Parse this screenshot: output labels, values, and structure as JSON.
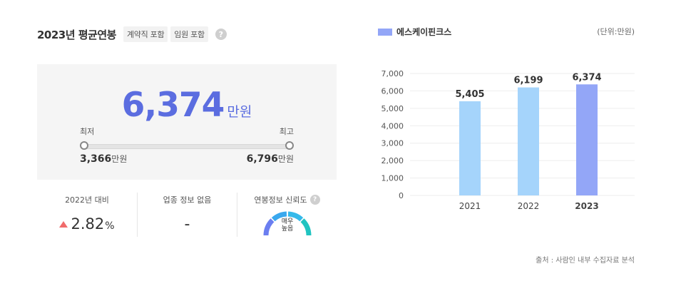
{
  "header": {
    "title": "2023년 평균연봉",
    "tag_contract": "계약직 포함",
    "tag_exec": "임원 포함",
    "help": "?"
  },
  "salary": {
    "average": "6,374",
    "unit": "만원",
    "min_label": "최저",
    "max_label": "최고",
    "min_value": "3,366",
    "max_value": "6,796",
    "range_unit": "만원"
  },
  "stats": {
    "yoy_label": "2022년 대비",
    "yoy_value": "2.82",
    "yoy_unit": "%",
    "industry_label": "업종 정보 없음",
    "industry_value": "-",
    "reliability_label": "연봉정보 신뢰도",
    "reliability_help": "?",
    "reliability_value_line1": "매우",
    "reliability_value_line2": "높음"
  },
  "legend": {
    "series_name": "에스케이핀크스",
    "unit_note": "(단위:만원)"
  },
  "colors": {
    "accent": "#5b6de0",
    "bar_past": "#a5d4fb",
    "bar_current": "#93a6f7",
    "up_arrow": "#f06b6b"
  },
  "chart_data": {
    "type": "bar",
    "categories": [
      "2021",
      "2022",
      "2023"
    ],
    "series": [
      {
        "name": "에스케이핀크스",
        "values": [
          5405,
          6199,
          6374
        ]
      }
    ],
    "value_labels": [
      "5,405",
      "6,199",
      "6,374"
    ],
    "y_ticks": [
      "0",
      "1,000",
      "2,000",
      "3,000",
      "4,000",
      "5,000",
      "6,000",
      "7,000"
    ],
    "ylim": [
      0,
      7000
    ],
    "grid": true,
    "highlight_category": "2023"
  },
  "footer": {
    "source": "출처 : 사람인 내부 수집자료 분석"
  }
}
